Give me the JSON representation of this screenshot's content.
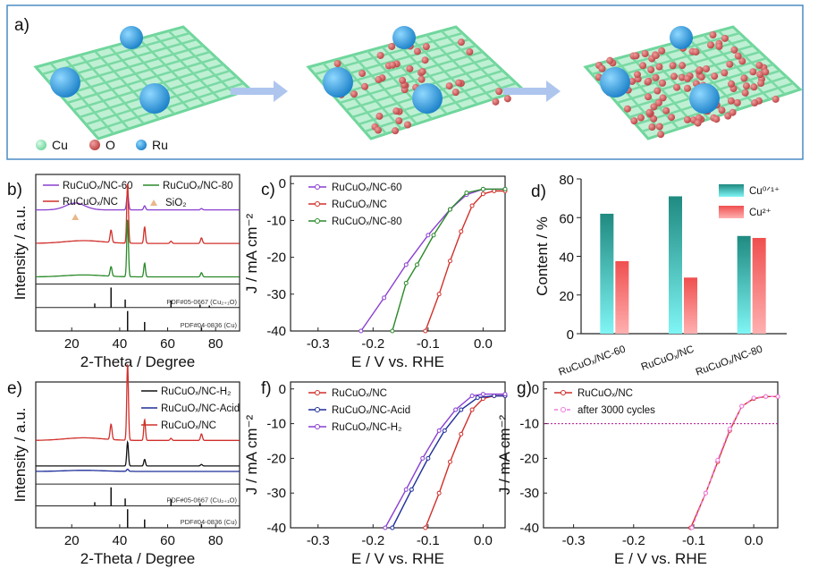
{
  "panel_a": {
    "label": "a)",
    "legend": [
      {
        "name": "Cu",
        "color": "#8ee6b5"
      },
      {
        "name": "O",
        "color": "#d9605e"
      },
      {
        "name": "Ru",
        "color": "#2fa8e0"
      }
    ],
    "arrow_color": "#aec6ee"
  },
  "chart_data": [
    {
      "panel": "b)",
      "type": "line",
      "xlabel": "2-Theta / Degree",
      "ylabel": "Intensity / a.u.",
      "xlim": [
        5,
        90
      ],
      "xticks": [
        20,
        40,
        60,
        80
      ],
      "series": [
        {
          "name": "RuCuOₓ/NC-60",
          "color": "#8a3fd1",
          "offset": 3,
          "peaks": [
            [
              21.5,
              0.25,
              4
            ],
            [
              43.3,
              0.6,
              0.4
            ],
            [
              50.4,
              0.15,
              0.4
            ],
            [
              74.1,
              0.05,
              0.4
            ]
          ]
        },
        {
          "name": "RuCuOₓ/NC",
          "color": "#d0302b",
          "offset": 2,
          "peaks": [
            [
              25,
              0.1,
              8
            ],
            [
              36.4,
              0.45,
              0.4
            ],
            [
              43.3,
              2.2,
              0.35
            ],
            [
              50.4,
              0.6,
              0.35
            ],
            [
              61.4,
              0.08,
              0.4
            ],
            [
              74.1,
              0.2,
              0.4
            ]
          ]
        },
        {
          "name": "RuCuOₓ/NC-80",
          "color": "#2a8a2a",
          "offset": 1,
          "peaks": [
            [
              25,
              0.07,
              8
            ],
            [
              36.4,
              0.35,
              0.4
            ],
            [
              43.3,
              2.1,
              0.35
            ],
            [
              50.4,
              0.5,
              0.35
            ],
            [
              74.1,
              0.15,
              0.4
            ]
          ]
        }
      ],
      "legend_extra": {
        "name": "SiO₂",
        "color": "#e8b88a"
      },
      "references": [
        {
          "label": "PDF#05-0667 (Cu₂₊₁O)",
          "lines": [
            [
              29.6,
              0.2
            ],
            [
              36.4,
              1
            ],
            [
              42.3,
              0.4
            ],
            [
              61.4,
              0.35
            ],
            [
              73.5,
              0.15
            ],
            [
              77.4,
              0.1
            ]
          ]
        },
        {
          "label": "PDF#04-0836 (Cu)",
          "lines": [
            [
              43.3,
              1
            ],
            [
              50.4,
              0.45
            ],
            [
              74.1,
              0.2
            ]
          ]
        }
      ]
    },
    {
      "panel": "c)",
      "type": "line",
      "xlabel": "E / V vs. RHE",
      "ylabel": "J / mA cm⁻²",
      "xlim": [
        -0.35,
        0.04
      ],
      "ylim": [
        -40,
        2
      ],
      "xticks": [
        -0.3,
        -0.2,
        -0.1,
        0.0
      ],
      "xticklabels": [
        "-0.3",
        "-0.2",
        "-0.1",
        "0.0"
      ],
      "yticks": [
        0,
        -10,
        -20,
        -30,
        -40
      ],
      "yticklabels": [
        "0",
        "-10",
        "-20",
        "-30",
        "-40"
      ],
      "series": [
        {
          "name": "RuCuOₓ/NC-60",
          "color": "#8a3fd1",
          "onset": -0.222,
          "x": [
            -0.222,
            -0.18,
            -0.14,
            -0.1,
            -0.06,
            -0.03,
            0.0,
            0.04
          ],
          "y": [
            -40,
            -31,
            -22,
            -14,
            -7,
            -3,
            -1.5,
            -1.5
          ]
        },
        {
          "name": "RuCuOₓ/NC",
          "color": "#d0302b",
          "x": [
            -0.105,
            -0.08,
            -0.06,
            -0.04,
            -0.02,
            0.0,
            0.02,
            0.04
          ],
          "y": [
            -40,
            -30,
            -21,
            -13,
            -6,
            -2.8,
            -2,
            -2
          ]
        },
        {
          "name": "RuCuOₓ/NC-80",
          "color": "#2a8a2a",
          "x": [
            -0.165,
            -0.14,
            -0.12,
            -0.09,
            -0.06,
            -0.03,
            0.0,
            0.04
          ],
          "y": [
            -40,
            -27,
            -22,
            -14,
            -7,
            -2.5,
            -1.5,
            -1.5
          ]
        }
      ]
    },
    {
      "panel": "d)",
      "type": "bar",
      "ylabel": "Content / %",
      "ylim": [
        0,
        80
      ],
      "yticks": [
        0,
        20,
        40,
        60,
        80
      ],
      "categories": [
        "RuCuOₓ/NC-60",
        "RuCuOₓ/NC",
        "RuCuOₓ/NC-80"
      ],
      "series": [
        {
          "name": "Cu⁰ᐟ¹⁺",
          "values": [
            62,
            71,
            50.5
          ],
          "color_top": "#1f8a80",
          "color_bottom": "#7ff5f5"
        },
        {
          "name": "Cu²⁺",
          "values": [
            37.5,
            29,
            49.5
          ],
          "color_top": "#f04f4f",
          "color_bottom": "#ffb0b0"
        }
      ]
    },
    {
      "panel": "e)",
      "type": "line",
      "xlabel": "2-Theta / Degree",
      "ylabel": "Intensity / a.u.",
      "xlim": [
        5,
        90
      ],
      "xticks": [
        20,
        40,
        60,
        80
      ],
      "series": [
        {
          "name": "RuCuOₓ/NC-H₂",
          "color": "#111111",
          "offset": 1.6,
          "peaks": [
            [
              43.3,
              1.1,
              0.35
            ],
            [
              50.4,
              0.3,
              0.35
            ],
            [
              74.1,
              0.07,
              0.4
            ]
          ]
        },
        {
          "name": "RuCuOₓ/NC-Acid",
          "color": "#1f2f9a",
          "offset": 1.3,
          "peaks": [
            [
              25,
              0.05,
              8
            ],
            [
              43.3,
              0.1,
              0.4
            ]
          ]
        },
        {
          "name": "RuCuOₓ/NC",
          "color": "#d0302b",
          "offset": 3.0,
          "peaks": [
            [
              25,
              0.12,
              8
            ],
            [
              36.4,
              0.7,
              0.4
            ],
            [
              43.3,
              3.5,
              0.35
            ],
            [
              50.4,
              0.95,
              0.35
            ],
            [
              61.4,
              0.1,
              0.4
            ],
            [
              74.1,
              0.3,
              0.4
            ]
          ]
        }
      ],
      "references": [
        {
          "label": "PDF#05-0667 (Cu₂₊₁O)",
          "lines": [
            [
              29.6,
              0.2
            ],
            [
              36.4,
              1
            ],
            [
              42.3,
              0.4
            ],
            [
              61.4,
              0.35
            ],
            [
              73.5,
              0.15
            ]
          ]
        },
        {
          "label": "PDF#04-0836 (Cu)",
          "lines": [
            [
              43.3,
              1
            ],
            [
              50.4,
              0.45
            ],
            [
              74.1,
              0.2
            ]
          ]
        }
      ]
    },
    {
      "panel": "f)",
      "type": "line",
      "xlabel": "E / V vs. RHE",
      "ylabel": "J / mA cm⁻²",
      "xlim": [
        -0.35,
        0.04
      ],
      "ylim": [
        -40,
        2
      ],
      "xticks": [
        -0.3,
        -0.2,
        -0.1,
        0.0
      ],
      "xticklabels": [
        "-0.3",
        "-0.2",
        "-0.1",
        "0.0"
      ],
      "yticks": [
        0,
        -10,
        -20,
        -30,
        -40
      ],
      "yticklabels": [
        "0",
        "-10",
        "-20",
        "-30",
        "-40"
      ],
      "series": [
        {
          "name": "RuCuOₓ/NC",
          "color": "#d0302b",
          "x": [
            -0.105,
            -0.08,
            -0.06,
            -0.04,
            -0.02,
            0.0,
            0.02,
            0.04
          ],
          "y": [
            -40,
            -30,
            -21,
            -13,
            -6,
            -2.8,
            -2,
            -2
          ]
        },
        {
          "name": "RuCuOₓ/NC-Acid",
          "color": "#1f2f9a",
          "x": [
            -0.165,
            -0.13,
            -0.1,
            -0.07,
            -0.04,
            -0.01,
            0.02,
            0.04
          ],
          "y": [
            -40,
            -29,
            -20,
            -12,
            -6,
            -2.5,
            -2,
            -2
          ]
        },
        {
          "name": "RuCuOₓ/NC-H₂",
          "color": "#8a3fd1",
          "x": [
            -0.178,
            -0.14,
            -0.11,
            -0.08,
            -0.05,
            -0.02,
            0.0,
            0.04
          ],
          "y": [
            -40,
            -29,
            -20,
            -12,
            -6,
            -2,
            -1.5,
            -1.5
          ]
        }
      ]
    },
    {
      "panel": "g)",
      "type": "line",
      "xlabel": "E / V vs. RHE",
      "ylabel": "J / mA cm⁻²",
      "xlim": [
        -0.35,
        0.04
      ],
      "ylim": [
        -40,
        2
      ],
      "xticks": [
        -0.3,
        -0.2,
        -0.1,
        0.0
      ],
      "xticklabels": [
        "-0.3",
        "-0.2",
        "-0.1",
        "0.0"
      ],
      "yticks": [
        0,
        -10,
        -20,
        -30,
        -40
      ],
      "yticklabels": [
        "0",
        "-10",
        "-20",
        "-30",
        "-40"
      ],
      "hline": {
        "y": -10,
        "color": "#b01090"
      },
      "series": [
        {
          "name": "RuCuOₓ/NC",
          "color": "#d0302b",
          "x": [
            -0.105,
            -0.08,
            -0.06,
            -0.04,
            -0.02,
            0.0,
            0.02,
            0.04
          ],
          "y": [
            -40,
            -30,
            -21,
            -12,
            -5,
            -2.8,
            -2.2,
            -2.2
          ]
        },
        {
          "name": "after 3000 cycles",
          "color": "#f07ae0",
          "dashed": true,
          "x": [
            -0.103,
            -0.08,
            -0.06,
            -0.04,
            -0.02,
            0.0,
            0.02,
            0.04
          ],
          "y": [
            -40,
            -30,
            -20.5,
            -11.5,
            -5,
            -2.6,
            -2.2,
            -2.2
          ]
        }
      ]
    }
  ]
}
